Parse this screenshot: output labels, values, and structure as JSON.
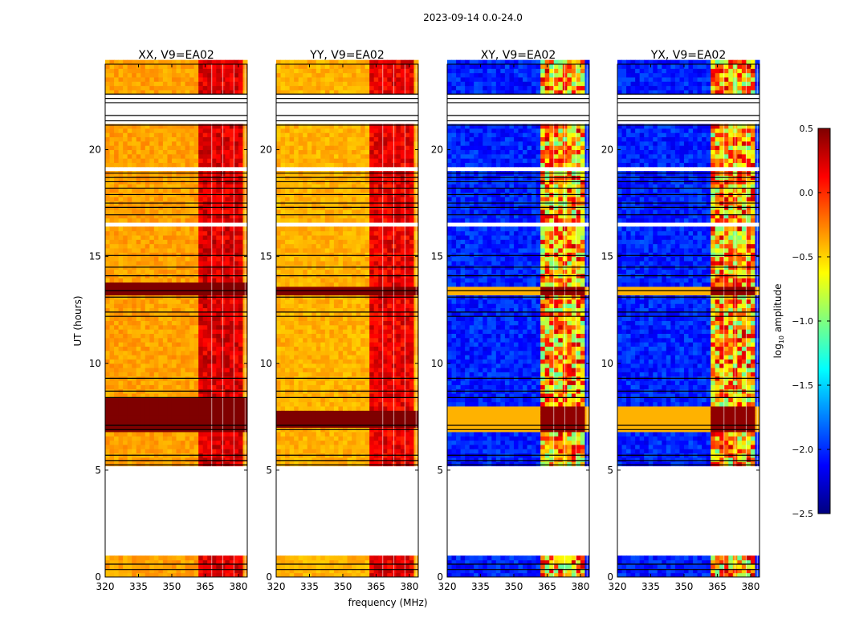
{
  "suptitle": "2023-09-14 0.0-24.0",
  "colors": {
    "jet": [
      "#00007f",
      "#0000ff",
      "#007fff",
      "#00ffff",
      "#7fff7f",
      "#ffff00",
      "#ff7f00",
      "#ff0000",
      "#7f0000"
    ],
    "gap": "#ffffff",
    "flag_line": "#000000"
  },
  "chart_data": {
    "type": "heatmap",
    "ylabel": "UT (hours)",
    "xlabel": "frequency (MHz)",
    "xlim": [
      320,
      384
    ],
    "ylim": [
      0,
      24
    ],
    "xticks": [
      "320",
      "335",
      "350",
      "365",
      "380"
    ],
    "yticks": [
      "0",
      "5",
      "10",
      "15",
      "20"
    ],
    "colorbar": {
      "label": "log",
      "label_sub": "10",
      "label_suffix": " amplitude",
      "range": [
        -2.5,
        0.5
      ],
      "ticks": [
        "0.5",
        "0.0",
        "−0.5",
        "−1.0",
        "−1.5",
        "−2.0",
        "−2.5"
      ]
    },
    "gaps_hours": [
      [
        0.9,
        5.1
      ],
      [
        16.3,
        16.5
      ],
      [
        21.0,
        22.4
      ],
      [
        22.6,
        22.7
      ],
      [
        18.9,
        19.0
      ]
    ],
    "flag_lines_hours": [
      0.35,
      0.6,
      5.25,
      5.45,
      5.7,
      6.9,
      7.1,
      8.4,
      8.7,
      9.3,
      12.2,
      12.4,
      13.1,
      13.4,
      14.1,
      14.5,
      15.05,
      16.95,
      17.3,
      17.5,
      17.9,
      18.2,
      18.5,
      18.7,
      18.9,
      21.15,
      21.35,
      21.6,
      22.2,
      22.4,
      22.6
    ],
    "band_channels_mhz": [
      364,
      369,
      374,
      379
    ],
    "panels": [
      {
        "title": "XX, V9=EA02",
        "kind": "parallel",
        "base_log10": -0.35,
        "band_log10": 0.4,
        "hot_hours": [
          [
            6.7,
            8.4
          ],
          [
            13.0,
            13.6
          ]
        ]
      },
      {
        "title": "YY, V9=EA02",
        "kind": "parallel",
        "base_log10": -0.4,
        "band_log10": 0.35,
        "hot_hours": [
          [
            7.0,
            7.8
          ],
          [
            13.0,
            13.5
          ]
        ]
      },
      {
        "title": "XY, V9=EA02",
        "kind": "cross",
        "base_log10": -2.1,
        "band_log10": 0.3,
        "hot_hours": [
          [
            6.8,
            8.0
          ],
          [
            13.0,
            13.4
          ]
        ]
      },
      {
        "title": "YX, V9=EA02",
        "kind": "cross",
        "base_log10": -2.1,
        "band_log10": 0.3,
        "hot_hours": [
          [
            6.8,
            8.0
          ],
          [
            13.0,
            13.4
          ]
        ]
      }
    ]
  }
}
